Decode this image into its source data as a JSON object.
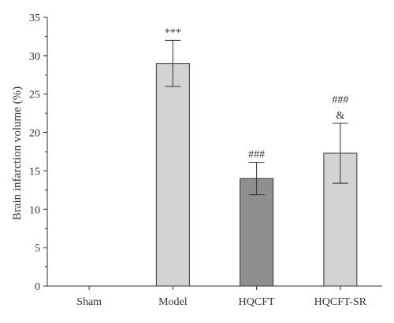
{
  "chart_data": {
    "type": "bar",
    "categories": [
      "Sham",
      "Model",
      "HQCFT",
      "HQCFT-SR"
    ],
    "values": [
      0,
      29.0,
      14.0,
      17.3
    ],
    "errors": [
      0,
      3.0,
      2.1,
      3.9
    ],
    "bar_colors": [
      "#d3d3d3",
      "#d3d3d3",
      "#8f8f8f",
      "#d3d3d3"
    ],
    "annotations": [
      [],
      [
        "***"
      ],
      [
        "###"
      ],
      [
        "###",
        "&"
      ]
    ],
    "ylabel": "Brain infarction volume (%)",
    "xlabel": "",
    "ylim": [
      0,
      35
    ],
    "yticks": [
      0,
      5,
      10,
      15,
      20,
      25,
      30,
      35
    ],
    "grid": false,
    "legend": "none"
  }
}
